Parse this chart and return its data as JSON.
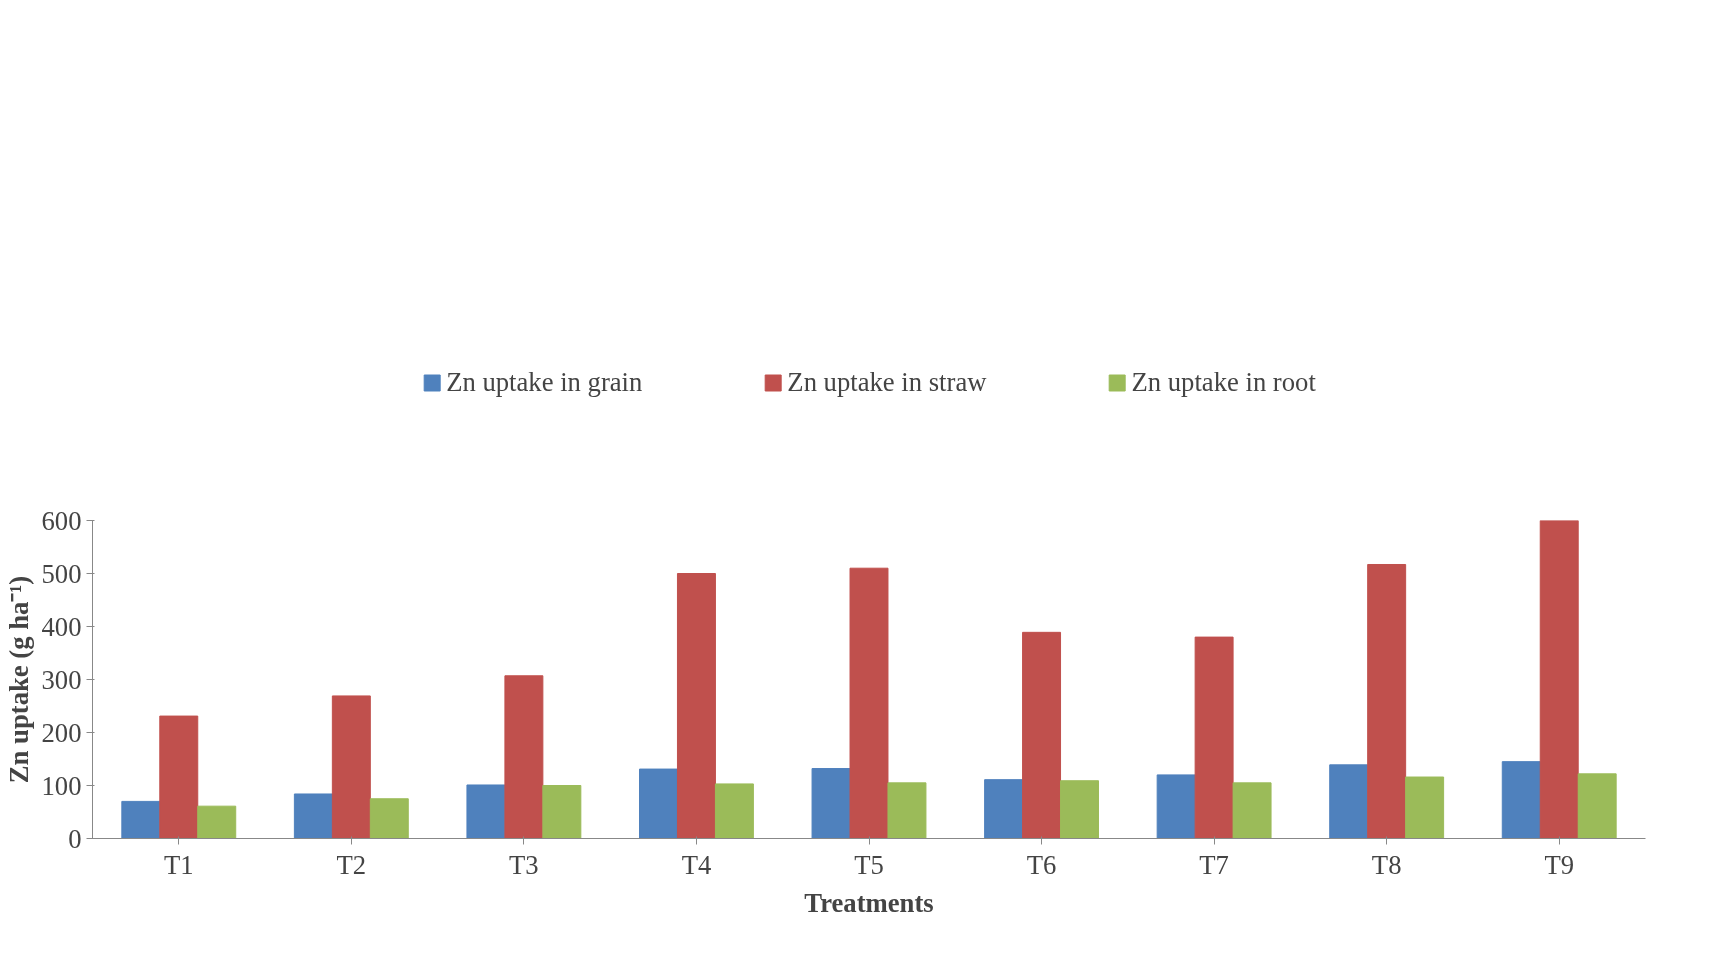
{
  "chart_data": {
    "type": "bar",
    "xlabel": "Treatments",
    "ylabel": "Zn uptake (g ha⁻¹)",
    "categories": [
      "T1",
      "T2",
      "T3",
      "T4",
      "T5",
      "T6",
      "T7",
      "T8",
      "T9"
    ],
    "series": [
      {
        "name": "Zn uptake in grain",
        "color": "#4f81bd",
        "values": [
          70,
          84,
          101,
          131,
          132,
          111,
          120,
          139,
          145
        ]
      },
      {
        "name": "Zn uptake in straw",
        "color": "#c0504d",
        "values": [
          231,
          269,
          307,
          500,
          510,
          389,
          380,
          517,
          600
        ]
      },
      {
        "name": "Zn uptake in root",
        "color": "#9bbb59",
        "values": [
          61,
          75,
          100,
          103,
          105,
          109,
          105,
          116,
          122
        ]
      }
    ],
    "ylim": [
      0,
      600
    ],
    "yticks": [
      0,
      100,
      200,
      300,
      400,
      500,
      600
    ],
    "grid": false,
    "legend": "top"
  }
}
